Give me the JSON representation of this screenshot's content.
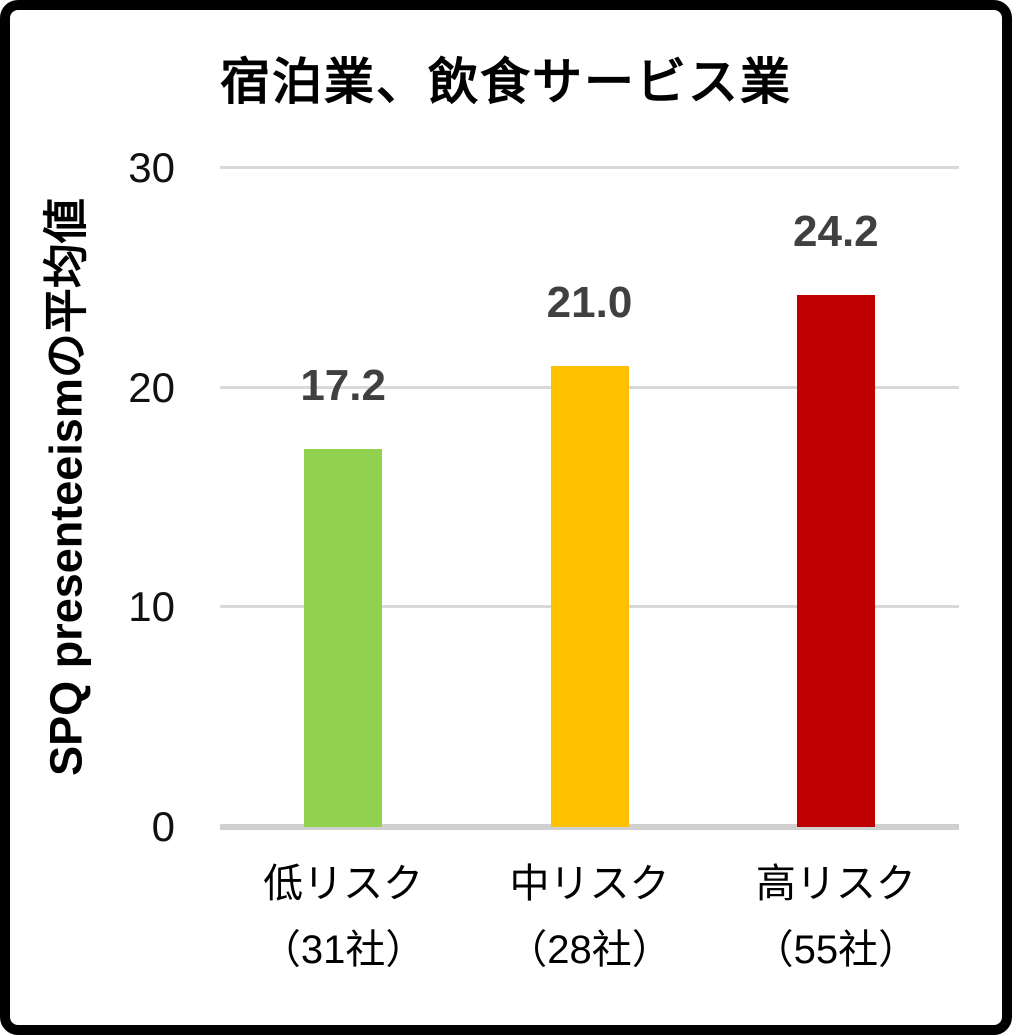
{
  "frame": {
    "border_color": "#000000",
    "background_color": "#FFFFFF"
  },
  "chart_data": {
    "type": "bar",
    "title": "宿泊業、飲食サービス業",
    "ylabel": "SPQ presenteeismの平均値",
    "xlabel": "",
    "categories": [
      "低リスク",
      "中リスク",
      "高リスク"
    ],
    "category_sublabels": [
      "（31社）",
      "（28社）",
      "（55社）"
    ],
    "values": [
      17.2,
      21.0,
      24.2
    ],
    "value_labels": [
      "17.2",
      "21.0",
      "24.2"
    ],
    "bar_colors": [
      "#92D050",
      "#FFC000",
      "#C00000"
    ],
    "ylim": [
      0,
      30
    ],
    "yticks": [
      0,
      10,
      20,
      30
    ],
    "ytick_labels": [
      "0",
      "10",
      "20",
      "30"
    ],
    "grid": true,
    "gridline_color": "#D9D9D9",
    "axis_line_color": "#D0D0D0",
    "value_label_color": "#404040",
    "tick_label_color": "#111111",
    "legend": "none"
  }
}
